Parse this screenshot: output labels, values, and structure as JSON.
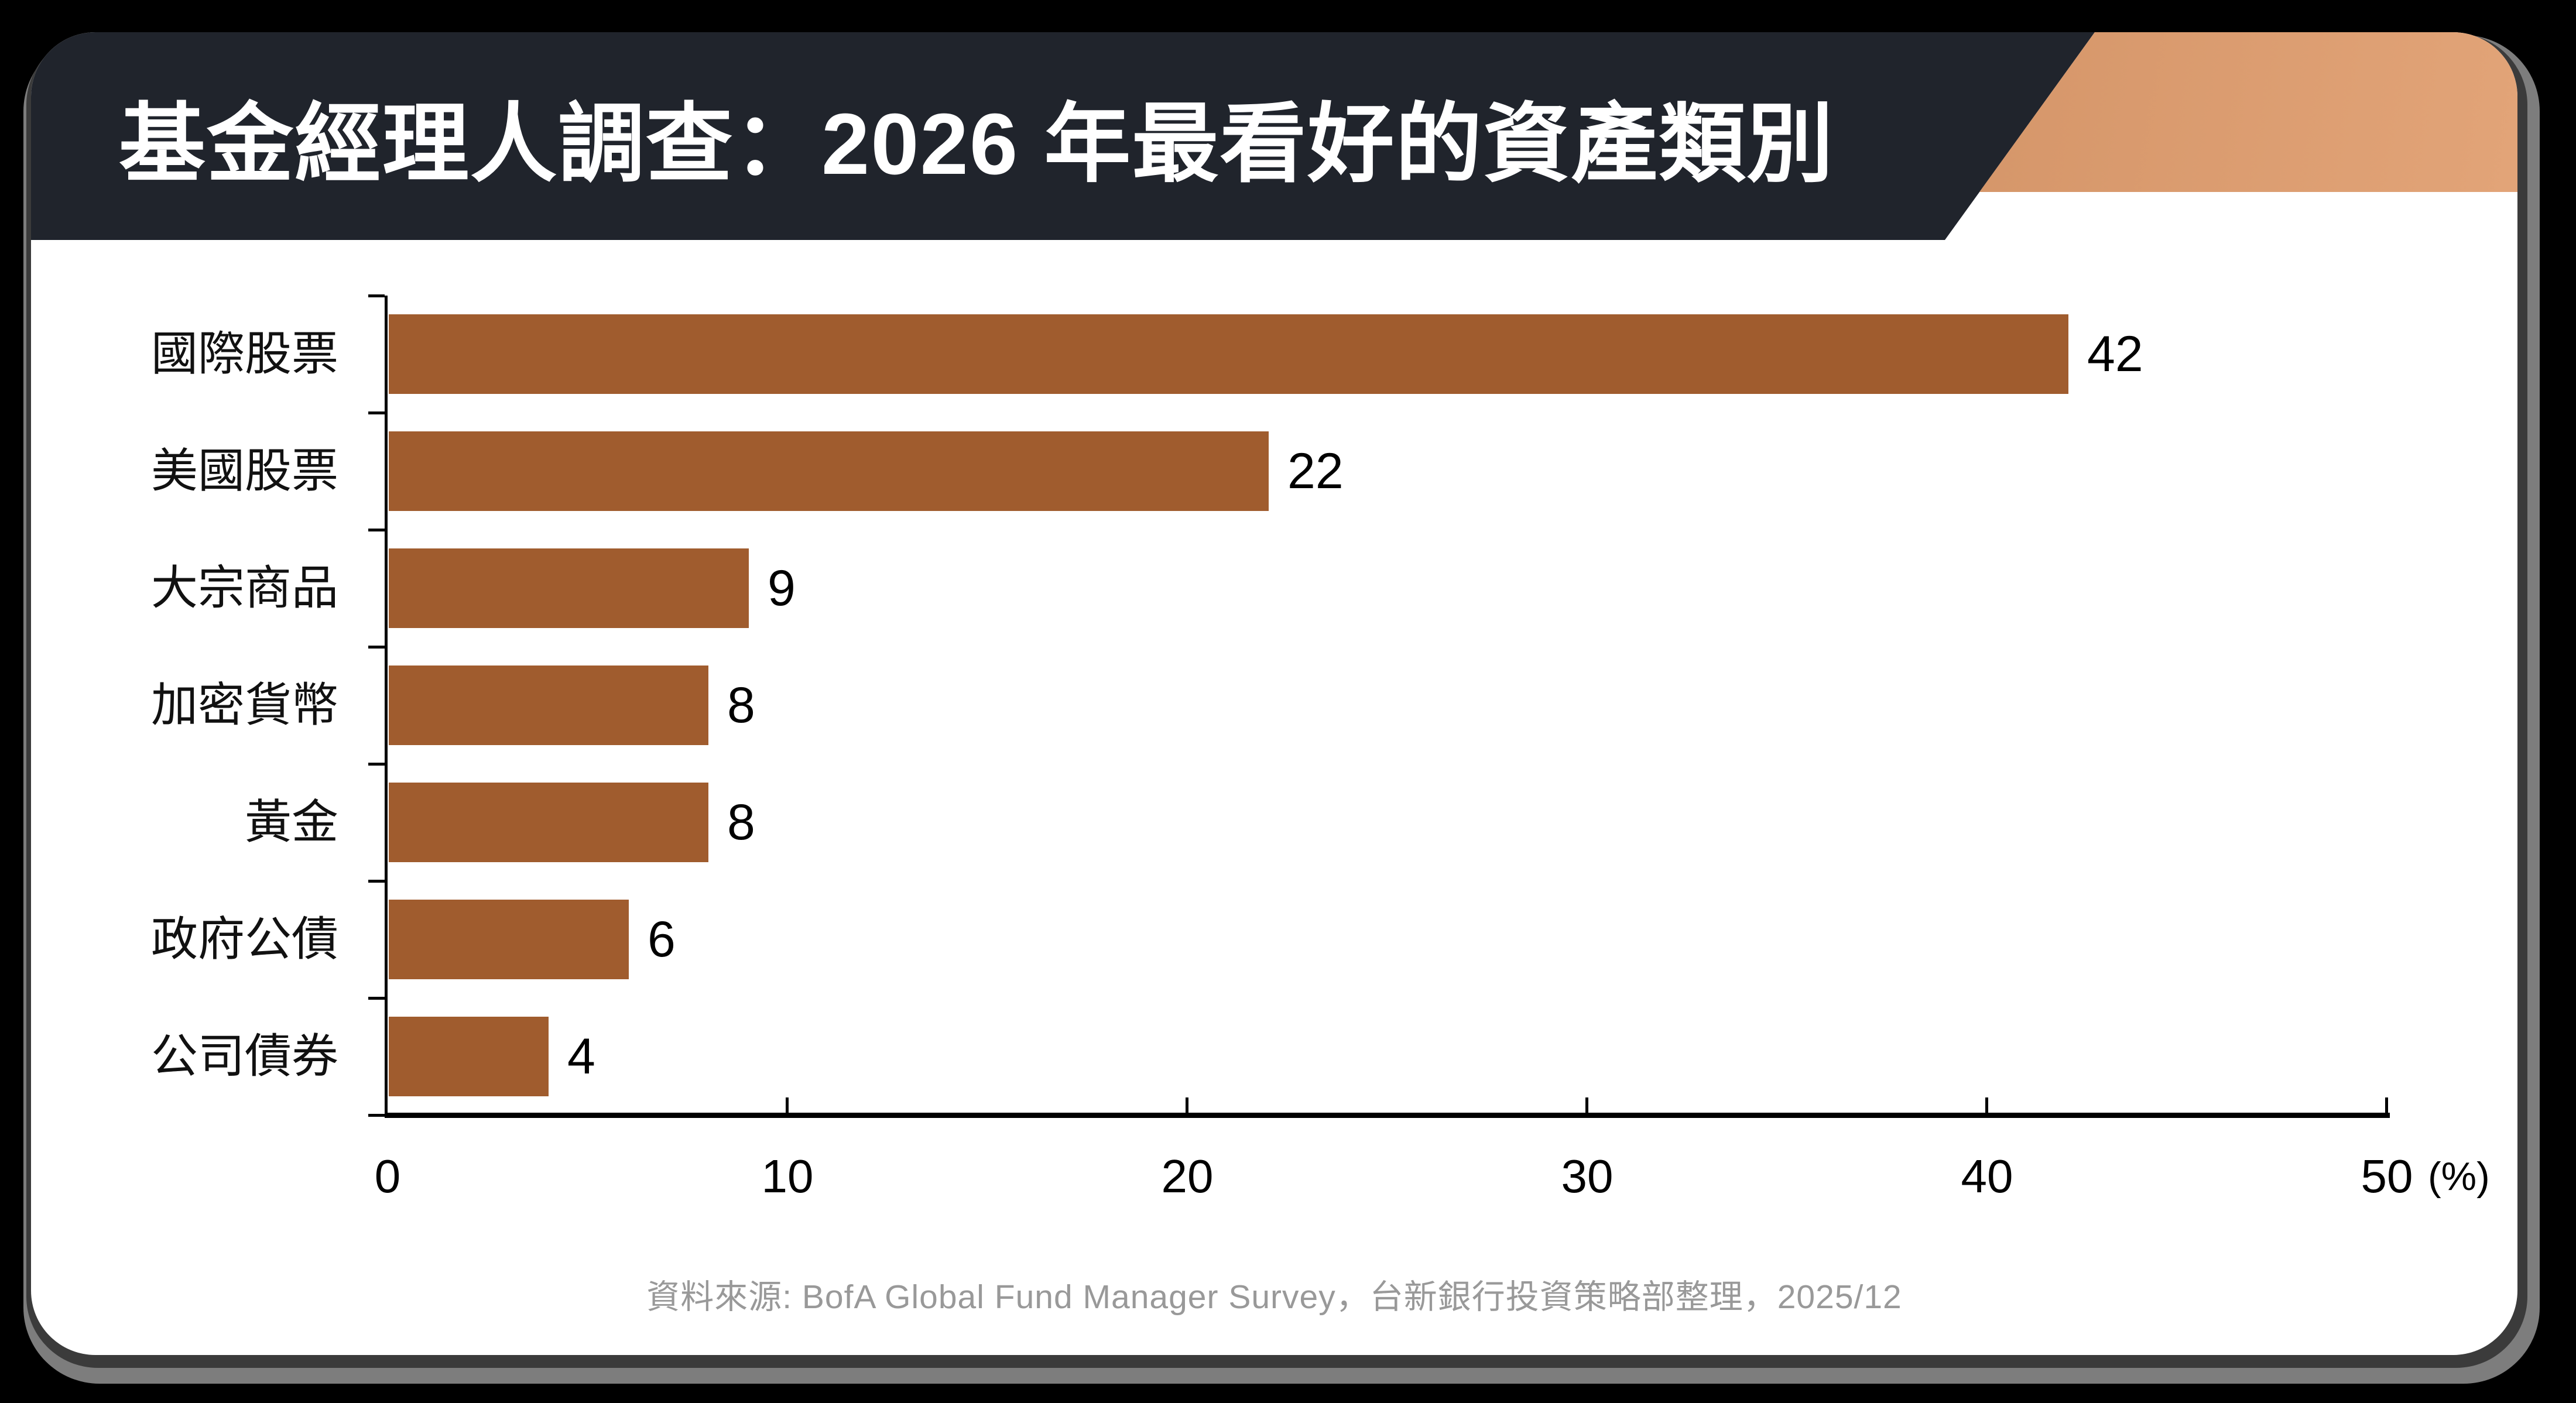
{
  "header": {
    "title": "基金經理人調查：2026 年最看好的資產類別",
    "background_color": "#20242C",
    "accent_gradient_from": "#A96638",
    "accent_gradient_to": "#E2A478"
  },
  "chart_data": {
    "type": "bar",
    "orientation": "horizontal",
    "title": "基金經理人調查：2026 年最看好的資產類別",
    "categories": [
      "國際股票",
      "美國股票",
      "大宗商品",
      "加密貨幣",
      "黃金",
      "政府公債",
      "公司債券"
    ],
    "values": [
      42,
      22,
      9,
      8,
      8,
      6,
      4
    ],
    "bar_color": "#A05C2E",
    "x_ticks": [
      0,
      10,
      20,
      30,
      40,
      50
    ],
    "xlim": [
      0,
      50
    ],
    "xlabel_unit": "(%)",
    "grid": false,
    "value_labels": true,
    "legend": "none"
  },
  "footer": {
    "source": "資料來源: BofA Global Fund Manager Survey，台新銀行投資策略部整理，2025/12"
  }
}
